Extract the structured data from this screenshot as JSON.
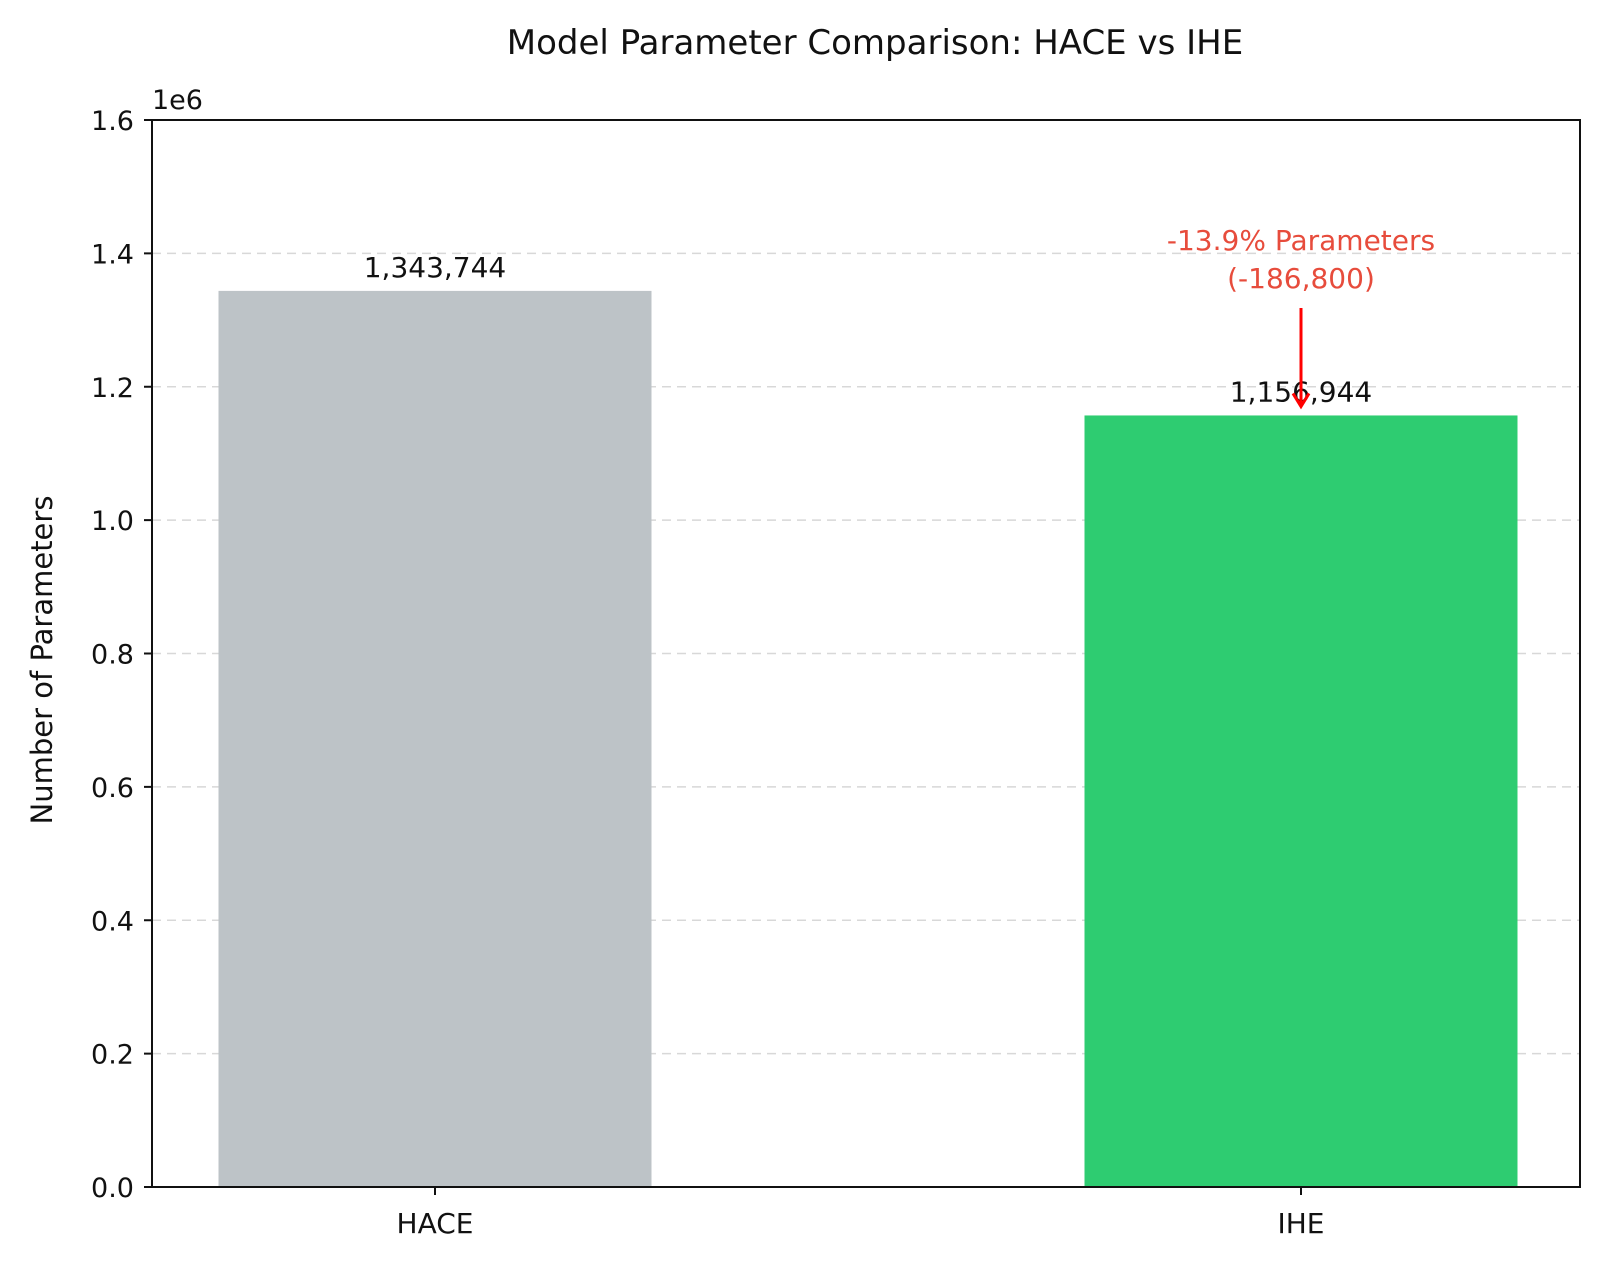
{
  "chart_data": {
    "type": "bar",
    "title": "Model Parameter Comparison: HACE vs IHE",
    "xlabel": "",
    "ylabel": "Number of Parameters",
    "y_offset_label": "1e6",
    "ylim": [
      0,
      1.6
    ],
    "y_scale_factor": 1000000,
    "yticks": [
      0.0,
      0.2,
      0.4,
      0.6,
      0.8,
      1.0,
      1.2,
      1.4,
      1.6
    ],
    "ytick_labels": [
      "0.0",
      "0.2",
      "0.4",
      "0.6",
      "0.8",
      "1.0",
      "1.2",
      "1.4",
      "1.6"
    ],
    "categories": [
      "HACE",
      "IHE"
    ],
    "values": [
      1343744,
      1156944
    ],
    "value_labels": [
      "1,343,744",
      "1,156,944"
    ],
    "colors": [
      "#bdc3c7",
      "#2ecc71"
    ],
    "grid": "horizontal dashed",
    "annotation": {
      "lines": [
        "-13.9% Parameters",
        "(-186,800)"
      ],
      "text_color": "#e74c3c",
      "arrow_color": "#ff0000",
      "target_category": "IHE"
    }
  }
}
